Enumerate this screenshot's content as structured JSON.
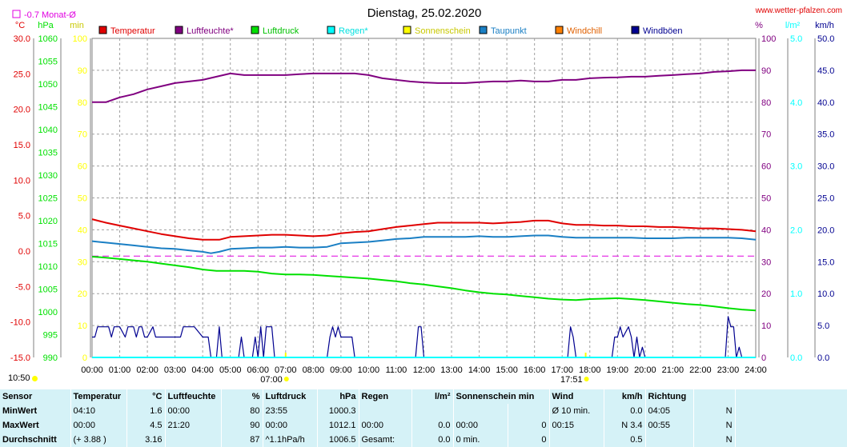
{
  "header": {
    "title": "Dienstag, 25.02.2020",
    "site": "www.wetter-pfalzen.com",
    "monthly_avg": "-0.7 Monat-Ø"
  },
  "colors": {
    "temperature": "#e00000",
    "humidity": "#800080",
    "pressure": "#00e000",
    "rain": "#00ffff",
    "sunshine": "#ffff00",
    "dewpoint": "#1a7fc4",
    "windchill": "#ff8000",
    "gusts": "#000090",
    "monthly_avg_line": "#e000e0"
  },
  "chart_data": {
    "type": "line",
    "title": "Dienstag, 25.02.2020",
    "x_ticks": [
      "00:00",
      "01:00",
      "02:00",
      "03:00",
      "04:00",
      "05:00",
      "06:00",
      "07:00",
      "08:00",
      "09:00",
      "10:00",
      "11:00",
      "12:00",
      "13:00",
      "14:00",
      "15:00",
      "16:00",
      "17:00",
      "18:00",
      "19:00",
      "20:00",
      "21:00",
      "22:00",
      "23:00",
      "24:00"
    ],
    "x_range_hours": [
      0,
      24
    ],
    "sunrise": "07:00",
    "sunset": "17:51",
    "current_time": "10:50",
    "axes": {
      "temperature": {
        "unit": "°C",
        "range": [
          -15,
          30
        ],
        "ticks": [
          "30.0",
          "25.0",
          "20.0",
          "15.0",
          "10.0",
          "5.0",
          "0.0",
          "-5.0",
          "-10.0",
          "-15.0"
        ]
      },
      "pressure": {
        "unit": "hPa",
        "range": [
          990,
          1060
        ],
        "ticks": [
          "1060",
          "1055",
          "1050",
          "1045",
          "1040",
          "1035",
          "1030",
          "1025",
          "1020",
          "1015",
          "1010",
          "1005",
          "1000",
          "995",
          "990"
        ]
      },
      "sunshine": {
        "unit": "min",
        "range": [
          0,
          100
        ],
        "ticks": [
          "100",
          "90",
          "80",
          "70",
          "60",
          "50",
          "40",
          "30",
          "20",
          "10",
          "0"
        ]
      },
      "humidity": {
        "unit": "%",
        "range": [
          0,
          100
        ],
        "ticks": [
          "100",
          "90",
          "80",
          "70",
          "60",
          "50",
          "40",
          "30",
          "20",
          "10",
          "0"
        ]
      },
      "rain": {
        "unit": "l/m²",
        "range": [
          0,
          5
        ],
        "ticks": [
          "5.0",
          "4.0",
          "3.0",
          "2.0",
          "1.0",
          "0.0"
        ]
      },
      "wind": {
        "unit": "km/h",
        "range": [
          0,
          50
        ],
        "ticks": [
          "50.0",
          "45.0",
          "40.0",
          "35.0",
          "30.0",
          "25.0",
          "20.0",
          "15.0",
          "10.0",
          "5.0",
          "0.0"
        ]
      }
    },
    "monthly_avg_temperature": -0.7,
    "legend": [
      "Temperatur",
      "Luftfeuchte*",
      "Luftdruck",
      "Regen*",
      "Sonnenschein",
      "Taupunkt",
      "Windchill",
      "Windböen"
    ],
    "series": [
      {
        "name": "Temperatur",
        "axis": "temperature",
        "x": [
          0,
          0.5,
          1,
          1.5,
          2,
          2.5,
          3,
          3.5,
          4,
          4.3,
          4.6,
          5,
          5.5,
          6,
          6.5,
          7,
          7.5,
          8,
          8.5,
          9,
          9.5,
          10,
          10.5,
          11,
          11.5,
          12,
          12.5,
          13,
          13.5,
          14,
          14.5,
          15,
          15.5,
          16,
          16.5,
          17,
          17.5,
          18,
          18.5,
          19,
          19.5,
          20,
          20.5,
          21,
          21.5,
          22,
          22.5,
          23,
          23.5,
          24
        ],
        "y": [
          4.5,
          4.0,
          3.6,
          3.2,
          2.8,
          2.4,
          2.1,
          1.8,
          1.6,
          1.6,
          1.6,
          2.0,
          2.1,
          2.2,
          2.3,
          2.3,
          2.2,
          2.1,
          2.2,
          2.5,
          2.7,
          2.8,
          3.1,
          3.4,
          3.6,
          3.8,
          4.0,
          4.0,
          4.0,
          4.0,
          3.9,
          4.0,
          4.1,
          4.3,
          4.3,
          3.9,
          3.7,
          3.7,
          3.6,
          3.6,
          3.5,
          3.5,
          3.4,
          3.4,
          3.3,
          3.2,
          3.2,
          3.1,
          3.0,
          2.8
        ]
      },
      {
        "name": "Luftfeuchte*",
        "axis": "humidity",
        "x": [
          0,
          0.5,
          1,
          1.5,
          2,
          2.5,
          3,
          3.5,
          4,
          4.5,
          5,
          5.5,
          6,
          6.5,
          7,
          7.5,
          8,
          8.5,
          9,
          9.5,
          10,
          10.5,
          11,
          11.5,
          12,
          12.5,
          13,
          13.5,
          14,
          14.5,
          15,
          15.5,
          16,
          16.5,
          17,
          17.5,
          18,
          18.5,
          19,
          19.5,
          20,
          20.5,
          21,
          21.5,
          22,
          22.5,
          23,
          23.5,
          24
        ],
        "y": [
          80,
          80,
          81.5,
          82.5,
          84,
          85,
          86,
          86.5,
          87,
          88,
          89,
          88.5,
          88.5,
          88.5,
          88.5,
          88.8,
          89,
          89,
          89,
          89,
          88.5,
          87.5,
          87,
          86.5,
          86.2,
          86,
          86,
          86,
          86.3,
          86.5,
          86.5,
          86.8,
          86.5,
          86.5,
          87,
          87,
          87.5,
          87.7,
          87.8,
          88,
          88,
          88.3,
          88.5,
          88.8,
          89,
          89.5,
          89.7,
          90,
          90
        ]
      },
      {
        "name": "Luftdruck",
        "axis": "pressure",
        "x": [
          0,
          0.5,
          1,
          1.5,
          2,
          2.5,
          3,
          3.5,
          4,
          4.5,
          5,
          5.5,
          6,
          6.5,
          7,
          7.5,
          8,
          8.5,
          9,
          9.5,
          10,
          10.5,
          11,
          11.5,
          12,
          12.5,
          13,
          13.5,
          14,
          14.5,
          15,
          15.5,
          16,
          16.5,
          17,
          17.5,
          18,
          18.5,
          19,
          19.5,
          20,
          20.5,
          21,
          21.5,
          22,
          22.5,
          23,
          23.5,
          24
        ],
        "y": [
          1012.1,
          1011.9,
          1011.6,
          1011.3,
          1011.0,
          1010.6,
          1010.2,
          1009.8,
          1009.3,
          1009.0,
          1009.0,
          1009.0,
          1008.8,
          1008.4,
          1008.2,
          1008.2,
          1008.1,
          1007.9,
          1007.7,
          1007.5,
          1007.3,
          1007.0,
          1006.7,
          1006.3,
          1006.0,
          1005.6,
          1005.2,
          1004.7,
          1004.3,
          1004.0,
          1003.8,
          1003.5,
          1003.2,
          1002.9,
          1002.7,
          1002.6,
          1002.8,
          1002.9,
          1003.0,
          1002.8,
          1002.6,
          1002.3,
          1002.0,
          1001.7,
          1001.5,
          1001.2,
          1000.8,
          1000.5,
          1000.3
        ]
      },
      {
        "name": "Taupunkt",
        "axis": "temperature",
        "x": [
          0,
          0.5,
          1,
          1.5,
          2,
          2.5,
          3,
          3.5,
          4,
          4.3,
          4.6,
          5,
          5.5,
          6,
          6.5,
          7,
          7.5,
          8,
          8.5,
          9,
          9.5,
          10,
          10.5,
          11,
          11.5,
          12,
          12.5,
          13,
          13.5,
          14,
          14.5,
          15,
          15.5,
          16,
          16.5,
          17,
          17.5,
          18,
          18.5,
          19,
          19.5,
          20,
          20.5,
          21,
          21.5,
          22,
          22.5,
          23,
          23.5,
          24
        ],
        "y": [
          1.4,
          1.2,
          1.0,
          0.8,
          0.6,
          0.4,
          0.3,
          0.1,
          -0.1,
          -0.3,
          -0.1,
          0.3,
          0.4,
          0.5,
          0.5,
          0.6,
          0.5,
          0.5,
          0.6,
          1.1,
          1.2,
          1.3,
          1.5,
          1.7,
          1.8,
          2.0,
          2.0,
          2.0,
          2.0,
          2.1,
          2.0,
          2.0,
          2.1,
          2.2,
          2.2,
          2.0,
          1.9,
          1.9,
          1.9,
          1.9,
          1.9,
          1.8,
          1.8,
          1.8,
          1.9,
          1.9,
          1.9,
          1.9,
          1.8,
          1.6
        ]
      },
      {
        "name": "Windböen",
        "axis": "wind",
        "x": [
          0,
          0.1,
          0.2,
          0.6,
          0.7,
          0.8,
          1.0,
          1.2,
          1.3,
          1.5,
          1.6,
          1.7,
          1.8,
          1.9,
          2.0,
          2.2,
          2.3,
          2.4,
          3.2,
          3.3,
          3.6,
          3.7,
          4.0,
          4.2,
          4.3,
          4.5,
          4.6,
          4.7,
          5.3,
          5.4,
          5.5,
          5.8,
          5.9,
          6.0,
          6.1,
          6.2,
          6.3,
          6.5,
          6.6,
          6.7,
          8.5,
          8.6,
          8.7,
          8.8,
          8.9,
          9.0,
          9.2,
          9.4,
          9.5,
          9.6,
          11.7,
          11.8,
          11.9,
          12.0,
          17.2,
          17.3,
          17.4,
          17.5,
          17.6,
          17.7,
          18.8,
          18.9,
          19.0,
          19.1,
          19.2,
          19.4,
          19.5,
          19.6,
          19.7,
          19.8,
          19.9,
          20.0,
          20.1,
          22.9,
          23.0,
          23.1,
          23.2,
          23.3,
          23.4,
          23.5
        ],
        "y": [
          3.2,
          3.2,
          4.8,
          4.8,
          3.2,
          4.8,
          4.8,
          3.2,
          4.8,
          4.8,
          3.2,
          4.8,
          4.8,
          3.2,
          3.2,
          4.8,
          3.2,
          3.2,
          3.2,
          4.8,
          4.8,
          4.8,
          3.2,
          3.2,
          0,
          0,
          4.8,
          0,
          0,
          3.2,
          0,
          0,
          3.2,
          0,
          4.8,
          0,
          4.8,
          4.8,
          0,
          0,
          0,
          3.2,
          4.8,
          3.2,
          4.8,
          3.2,
          3.2,
          3.2,
          0,
          0,
          0,
          4.8,
          4.8,
          0,
          0,
          4.8,
          3.2,
          0,
          0,
          0,
          0,
          3.2,
          3.2,
          4.8,
          3.2,
          4.8,
          3.2,
          0,
          3.2,
          0,
          1.6,
          0,
          0,
          0,
          6.4,
          4.8,
          4.8,
          0,
          1.6,
          0
        ]
      },
      {
        "name": "Regen*",
        "axis": "rain",
        "x": [
          0,
          24
        ],
        "y": [
          0,
          0
        ]
      }
    ],
    "grid": true
  },
  "summary": {
    "headers": {
      "sensor": "Sensor",
      "temp": "Temperatur",
      "temp_unit": "°C",
      "hum": "Luftfeuchte",
      "hum_unit": "%",
      "press": "Luftdruck",
      "press_unit": "hPa",
      "rain": "Regen",
      "rain_unit": "l/m²",
      "sun": "Sonnenschein min",
      "wind": "Wind",
      "wind_unit": "km/h",
      "dir": "Richtung"
    },
    "rows": [
      {
        "label": "MinWert",
        "temp_time": "04:10",
        "temp_val": "1.6",
        "hum_time": "00:00",
        "hum_val": "80",
        "press_time": "23:55",
        "press_val": "1000.3",
        "rain_time": "",
        "rain_val": "",
        "sun_time": "",
        "sun_val": "",
        "wind_time": "Ø 10 min.",
        "wind_val": "0.0",
        "dir_time": "04:05",
        "dir_val": "N"
      },
      {
        "label": "MaxWert",
        "temp_time": "00:00",
        "temp_val": "4.5",
        "hum_time": "21:20",
        "hum_val": "90",
        "press_time": "00:00",
        "press_val": "1012.1",
        "rain_time": "00:00",
        "rain_val": "0.0",
        "sun_time": "00:00",
        "sun_val": "0",
        "wind_time": "00:15",
        "wind_val": "N 3.4",
        "dir_time": "00:55",
        "dir_val": "N"
      },
      {
        "label": "Durchschnitt",
        "temp_time": "(+ 3.88 )",
        "temp_val": "3.16",
        "hum_time": "",
        "hum_val": "87",
        "press_time": "^1.1hPa/h",
        "press_val": "1006.5",
        "rain_time": "Gesamt:",
        "rain_val": "0.0",
        "sun_time": "0 min.",
        "sun_val": "0",
        "wind_time": "",
        "wind_val": "0.5",
        "dir_time": "",
        "dir_val": "N"
      }
    ]
  }
}
